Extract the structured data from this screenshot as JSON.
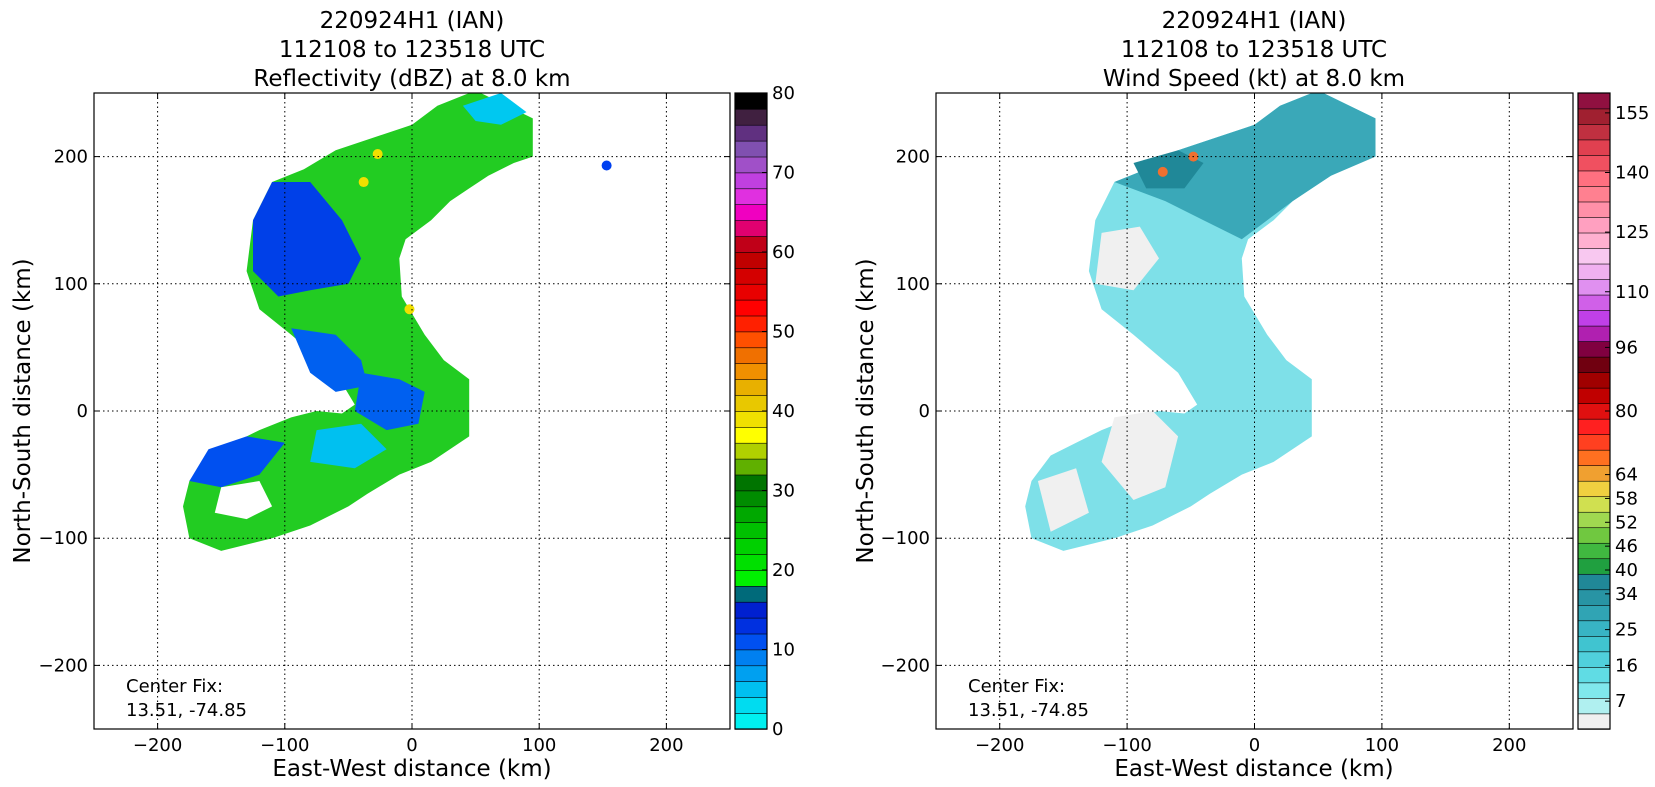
{
  "panels": [
    {
      "title_lines": [
        "220924H1 (IAN)",
        "112108 to 123518 UTC",
        "Reflectivity (dBZ) at 8.0 km"
      ],
      "xlabel": "East-West distance (km)",
      "ylabel": "North-South distance (km)",
      "center_fix_label": "Center Fix:",
      "center_fix_value": "13.51, -74.85"
    },
    {
      "title_lines": [
        "220924H1 (IAN)",
        "112108 to 123518 UTC",
        "Wind Speed (kt) at 8.0 km"
      ],
      "xlabel": "East-West distance (km)",
      "ylabel": "North-South distance (km)",
      "center_fix_label": "Center Fix:",
      "center_fix_value": "13.51, -74.85"
    }
  ],
  "chart_data": [
    {
      "type": "heatmap",
      "field": "reflectivity",
      "xlim": [
        -250,
        250
      ],
      "ylim": [
        -250,
        250
      ],
      "xticks": [
        -200,
        -100,
        0,
        100,
        200
      ],
      "yticks": [
        -200,
        -100,
        0,
        100,
        200
      ],
      "grid": true,
      "colorbar": {
        "range": [
          0,
          80
        ],
        "tick_values": [
          0,
          10,
          20,
          30,
          40,
          50,
          60,
          70,
          80
        ],
        "tick_labels": [
          "0",
          "10",
          "20",
          "30",
          "40",
          "50",
          "60",
          "70",
          "80"
        ],
        "colors": [
          "#00f0f0",
          "#00dcf0",
          "#00c0f0",
          "#00a0f0",
          "#0080f0",
          "#0050f0",
          "#0030e0",
          "#0020d0",
          "#006a7a",
          "#00f000",
          "#00e000",
          "#00d000",
          "#00c000",
          "#00a800",
          "#008c00",
          "#007400",
          "#60b000",
          "#b0d000",
          "#ffff00",
          "#f0e000",
          "#e8c800",
          "#e8b000",
          "#f09000",
          "#f07000",
          "#ff5000",
          "#ff2000",
          "#ff0000",
          "#e80000",
          "#d40000",
          "#c00000",
          "#c00018",
          "#e00070",
          "#f000c0",
          "#e030e0",
          "#c040e0",
          "#a050c8",
          "#8050b0",
          "#603080",
          "#402040",
          "#000000"
        ]
      },
      "swaths": [
        {
          "polygon": [
            [
              -125,
              150
            ],
            [
              -110,
              180
            ],
            [
              -85,
              190
            ],
            [
              -60,
              205
            ],
            [
              -30,
              215
            ],
            [
              0,
              225
            ],
            [
              20,
              240
            ],
            [
              50,
              252
            ],
            [
              95,
              230
            ],
            [
              95,
              200
            ],
            [
              80,
              195
            ],
            [
              60,
              185
            ],
            [
              45,
              175
            ],
            [
              30,
              165
            ],
            [
              15,
              150
            ],
            [
              -5,
              135
            ],
            [
              -10,
              120
            ],
            [
              -8,
              90
            ],
            [
              10,
              60
            ],
            [
              25,
              40
            ],
            [
              45,
              25
            ],
            [
              45,
              -20
            ],
            [
              15,
              -40
            ],
            [
              -10,
              -50
            ],
            [
              -35,
              -65
            ],
            [
              -50,
              -75
            ],
            [
              -80,
              -90
            ],
            [
              -110,
              -100
            ],
            [
              -150,
              -110
            ],
            [
              -175,
              -100
            ],
            [
              -180,
              -75
            ],
            [
              -175,
              -55
            ],
            [
              -160,
              -35
            ],
            [
              -140,
              -25
            ],
            [
              -120,
              -15
            ],
            [
              -95,
              -5
            ],
            [
              -75,
              0
            ],
            [
              -55,
              -2
            ],
            [
              -45,
              5
            ],
            [
              -60,
              30
            ],
            [
              -95,
              60
            ],
            [
              -120,
              80
            ],
            [
              -130,
              110
            ]
          ],
          "color": "#22cc22"
        },
        {
          "polygon": [
            [
              -125,
              150
            ],
            [
              -110,
              180
            ],
            [
              -80,
              180
            ],
            [
              -55,
              150
            ],
            [
              -40,
              120
            ],
            [
              -50,
              100
            ],
            [
              -80,
              95
            ],
            [
              -105,
              90
            ],
            [
              -125,
              110
            ]
          ],
          "color": "#0040e8"
        },
        {
          "polygon": [
            [
              -95,
              65
            ],
            [
              -60,
              60
            ],
            [
              -40,
              40
            ],
            [
              -35,
              20
            ],
            [
              -60,
              15
            ],
            [
              -80,
              30
            ]
          ],
          "color": "#0060f0"
        },
        {
          "polygon": [
            [
              -40,
              30
            ],
            [
              -10,
              25
            ],
            [
              10,
              15
            ],
            [
              5,
              -10
            ],
            [
              -20,
              -15
            ],
            [
              -45,
              0
            ]
          ],
          "color": "#0060f0"
        },
        {
          "polygon": [
            [
              -160,
              -30
            ],
            [
              -130,
              -20
            ],
            [
              -100,
              -25
            ],
            [
              -120,
              -50
            ],
            [
              -150,
              -60
            ],
            [
              -175,
              -55
            ]
          ],
          "color": "#0050f0"
        },
        {
          "polygon": [
            [
              -150,
              -60
            ],
            [
              -120,
              -55
            ],
            [
              -110,
              -75
            ],
            [
              -130,
              -85
            ],
            [
              -155,
              -80
            ]
          ],
          "color": "#ffffff"
        },
        {
          "polygon": [
            [
              -75,
              -15
            ],
            [
              -40,
              -10
            ],
            [
              -20,
              -30
            ],
            [
              -45,
              -45
            ],
            [
              -80,
              -40
            ]
          ],
          "color": "#00c0f0"
        },
        {
          "polygon": [
            [
              40,
              240
            ],
            [
              70,
              250
            ],
            [
              90,
              235
            ],
            [
              70,
              225
            ],
            [
              50,
              228
            ]
          ],
          "color": "#00c8f0"
        }
      ],
      "hotspots": [
        {
          "x": -38,
          "y": 180,
          "color": "#f0e000"
        },
        {
          "x": -27,
          "y": 202,
          "color": "#f0e000"
        },
        {
          "x": -2,
          "y": 80,
          "color": "#f0e000"
        },
        {
          "x": 153,
          "y": 193,
          "color": "#0040f0"
        }
      ]
    },
    {
      "type": "heatmap",
      "field": "wind_speed",
      "xlim": [
        -250,
        250
      ],
      "ylim": [
        -250,
        250
      ],
      "xticks": [
        -200,
        -100,
        0,
        100,
        200
      ],
      "yticks": [
        -200,
        -100,
        0,
        100,
        200
      ],
      "grid": true,
      "colorbar": {
        "range": [
          0,
          160
        ],
        "tick_values": [
          7,
          16,
          25,
          34,
          40,
          46,
          52,
          58,
          64,
          80,
          96,
          110,
          125,
          140,
          155
        ],
        "tick_labels": [
          "7",
          "16",
          "25",
          "34",
          "40",
          "46",
          "52",
          "58",
          "64",
          "80",
          "96",
          "110",
          "125",
          "140",
          "155"
        ],
        "colors": [
          "#f0f0f0",
          "#b0f0f0",
          "#80e8ec",
          "#60dce4",
          "#50d0dc",
          "#40c4d0",
          "#38b4c4",
          "#30a4b4",
          "#2894a4",
          "#208898",
          "#20a040",
          "#40b840",
          "#70c840",
          "#a0d850",
          "#d0e050",
          "#f0d040",
          "#f0a030",
          "#ff7020",
          "#ff4020",
          "#ff2020",
          "#e01010",
          "#c00000",
          "#a00000",
          "#700010",
          "#800040",
          "#b020b0",
          "#c040e8",
          "#d060e8",
          "#e090f0",
          "#f0b0f0",
          "#f8c8f0",
          "#ffb0d0",
          "#ffa0c0",
          "#ff90a8",
          "#ff8090",
          "#ff7080",
          "#f05060",
          "#e04050",
          "#c03040",
          "#a02030",
          "#901040"
        ]
      },
      "swaths": [
        {
          "polygon": [
            [
              -125,
              150
            ],
            [
              -110,
              180
            ],
            [
              -85,
              190
            ],
            [
              -60,
              205
            ],
            [
              -30,
              215
            ],
            [
              0,
              225
            ],
            [
              20,
              240
            ],
            [
              50,
              252
            ],
            [
              95,
              230
            ],
            [
              95,
              200
            ],
            [
              80,
              195
            ],
            [
              60,
              185
            ],
            [
              45,
              175
            ],
            [
              30,
              165
            ],
            [
              15,
              150
            ],
            [
              -5,
              135
            ],
            [
              -10,
              120
            ],
            [
              -8,
              90
            ],
            [
              10,
              60
            ],
            [
              25,
              40
            ],
            [
              45,
              25
            ],
            [
              45,
              -20
            ],
            [
              15,
              -40
            ],
            [
              -10,
              -50
            ],
            [
              -35,
              -65
            ],
            [
              -50,
              -75
            ],
            [
              -80,
              -90
            ],
            [
              -110,
              -100
            ],
            [
              -150,
              -110
            ],
            [
              -175,
              -100
            ],
            [
              -180,
              -75
            ],
            [
              -175,
              -55
            ],
            [
              -160,
              -35
            ],
            [
              -140,
              -25
            ],
            [
              -120,
              -15
            ],
            [
              -95,
              -5
            ],
            [
              -75,
              0
            ],
            [
              -55,
              -2
            ],
            [
              -45,
              5
            ],
            [
              -60,
              30
            ],
            [
              -95,
              60
            ],
            [
              -120,
              80
            ],
            [
              -130,
              110
            ]
          ],
          "color": "#7ee0e8"
        },
        {
          "polygon": [
            [
              -110,
              180
            ],
            [
              -85,
              190
            ],
            [
              -60,
              205
            ],
            [
              -30,
              215
            ],
            [
              0,
              225
            ],
            [
              20,
              240
            ],
            [
              50,
              252
            ],
            [
              95,
              230
            ],
            [
              95,
              200
            ],
            [
              60,
              185
            ],
            [
              30,
              165
            ],
            [
              10,
              150
            ],
            [
              -10,
              135
            ],
            [
              -40,
              150
            ],
            [
              -70,
              165
            ]
          ],
          "color": "#3aa8b8"
        },
        {
          "polygon": [
            [
              -95,
              195
            ],
            [
              -60,
              205
            ],
            [
              -40,
              195
            ],
            [
              -55,
              175
            ],
            [
              -85,
              175
            ]
          ],
          "color": "#208898"
        },
        {
          "polygon": [
            [
              -120,
              140
            ],
            [
              -90,
              145
            ],
            [
              -75,
              120
            ],
            [
              -95,
              95
            ],
            [
              -125,
              100
            ]
          ],
          "color": "#f0f0f0"
        },
        {
          "polygon": [
            [
              -110,
              -5
            ],
            [
              -80,
              0
            ],
            [
              -60,
              -20
            ],
            [
              -70,
              -60
            ],
            [
              -95,
              -70
            ],
            [
              -120,
              -40
            ]
          ],
          "color": "#f0f0f0"
        },
        {
          "polygon": [
            [
              -170,
              -55
            ],
            [
              -140,
              -45
            ],
            [
              -130,
              -80
            ],
            [
              -160,
              -95
            ]
          ],
          "color": "#f0f0f0"
        }
      ],
      "hotspots": [
        {
          "x": -48,
          "y": 200,
          "color": "#f07030"
        },
        {
          "x": -72,
          "y": 188,
          "color": "#f07030"
        }
      ]
    }
  ]
}
